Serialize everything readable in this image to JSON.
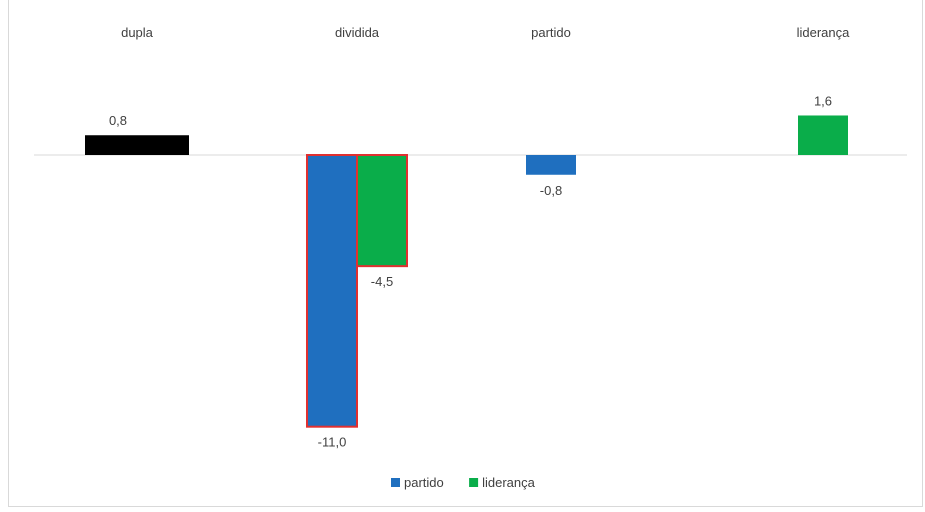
{
  "chart_data": {
    "type": "bar",
    "categories": [
      "dupla",
      "dividida",
      "partido",
      "liderança"
    ],
    "series": [
      {
        "name": "partido",
        "color": "#1f6fbf",
        "values": [
          0.8,
          -11.0,
          -0.8,
          null
        ]
      },
      {
        "name": "liderança",
        "color": "#0aad4a",
        "values": [
          null,
          -4.5,
          null,
          1.6
        ]
      }
    ],
    "value_labels": [
      [
        "0,8",
        "-11,0",
        "-0,8",
        null
      ],
      [
        null,
        "-4,5",
        null,
        "1,6"
      ]
    ],
    "special_colors": {
      "dupla_bar": "#000000",
      "highlight_outline": "#e03030"
    },
    "highlighted_category": "dividida",
    "ylim": [
      -11.0,
      1.6
    ],
    "legend_position": "bottom",
    "grid": false,
    "title": "",
    "xlabel": "",
    "ylabel": ""
  }
}
